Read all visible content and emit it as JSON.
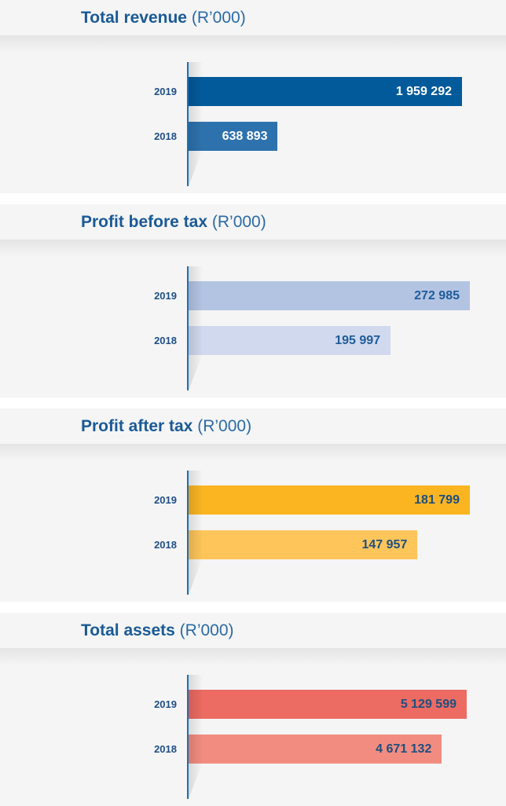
{
  "chart_data": [
    {
      "type": "bar",
      "orientation": "horizontal",
      "title": "Total revenue",
      "unit": "(R’000)",
      "categories": [
        "2019",
        "2018"
      ],
      "values": [
        1959292,
        638893
      ],
      "labels": [
        "1 959 292",
        "638 893"
      ],
      "colors": [
        "#035a9b",
        "#2e72ad"
      ],
      "label_color": "#ffffff",
      "xlim": [
        0,
        2026853
      ]
    },
    {
      "type": "bar",
      "orientation": "horizontal",
      "title": "Profit before tax",
      "unit": "(R’000)",
      "categories": [
        "2019",
        "2018"
      ],
      "values": [
        272985,
        195997
      ],
      "labels": [
        "272 985",
        "195 997"
      ],
      "colors": [
        "#b3c4e3",
        "#d0d9ee"
      ],
      "label_color": "#1f5c99",
      "xlim": [
        0,
        274510
      ]
    },
    {
      "type": "bar",
      "orientation": "horizontal",
      "title": "Profit after tax",
      "unit": "(R’000)",
      "categories": [
        "2019",
        "2018"
      ],
      "values": [
        181799,
        147957
      ],
      "labels": [
        "181 799",
        "147 957"
      ],
      "colors": [
        "#fab521",
        "#fec55a"
      ],
      "label_color": "#1e4f80",
      "xlim": [
        0,
        182815
      ]
    },
    {
      "type": "bar",
      "orientation": "horizontal",
      "title": "Total assets",
      "unit": "(R’000)",
      "categories": [
        "2019",
        "2018"
      ],
      "values": [
        5129599,
        4671132
      ],
      "labels": [
        "5 129 599",
        "4 671 132"
      ],
      "colors": [
        "#ec6b62",
        "#f28c80"
      ],
      "label_color": "#1e4f80",
      "xlim": [
        0,
        5216541
      ]
    }
  ]
}
